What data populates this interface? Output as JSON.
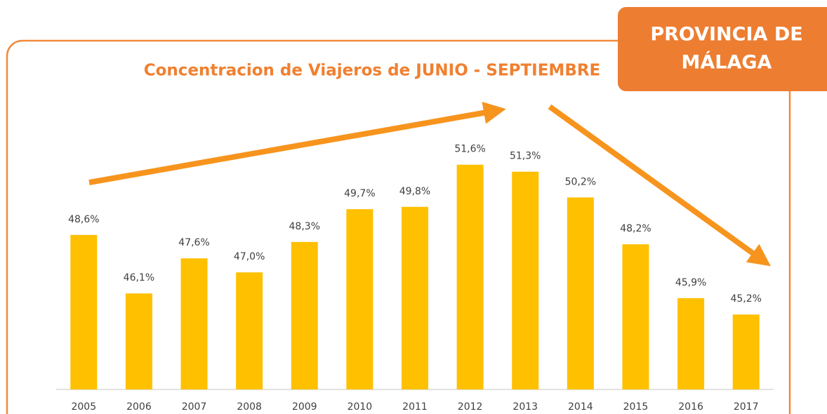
{
  "chart_data": {
    "type": "bar",
    "title": "Concentracion de Viajeros de JUNIO - SEPTIEMBRE",
    "badge": [
      "PROVINCIA DE",
      "MÁLAGA"
    ],
    "categories": [
      "2005",
      "2006",
      "2007",
      "2008",
      "2009",
      "2010",
      "2011",
      "2012",
      "2013",
      "2014",
      "2015",
      "2016",
      "2017"
    ],
    "values": [
      48.6,
      46.1,
      47.6,
      47.0,
      48.3,
      49.7,
      49.8,
      51.6,
      51.3,
      50.2,
      48.2,
      45.9,
      45.2
    ],
    "value_labels": [
      "48,6%",
      "46,1%",
      "47,6%",
      "47,0%",
      "48,3%",
      "49,7%",
      "49,8%",
      "51,6%",
      "51,3%",
      "50,2%",
      "48,2%",
      "45,9%",
      "45,2%"
    ],
    "color": "#ffc000",
    "ylim": [
      42,
      53
    ]
  }
}
